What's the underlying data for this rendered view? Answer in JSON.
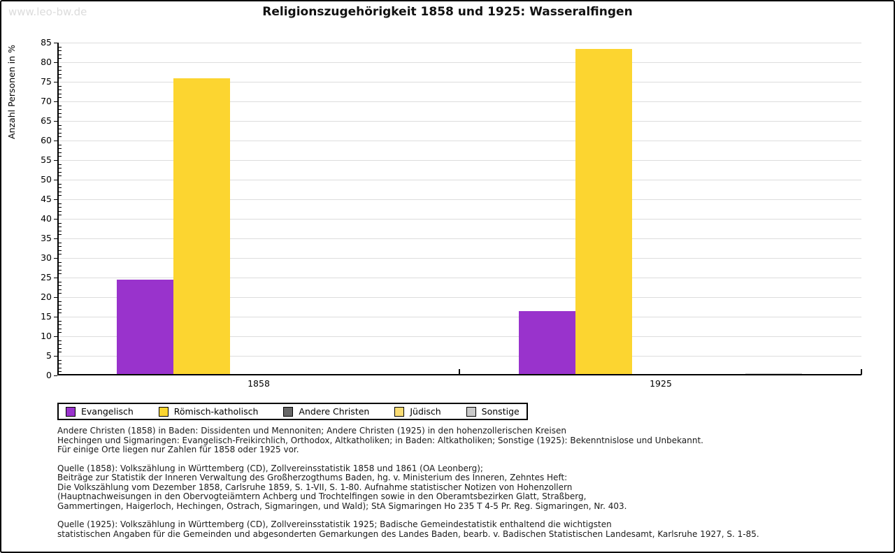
{
  "header": {
    "watermark": "www.leo-bw.de",
    "title": "Religionszugehörigkeit 1858 und 1925: Wasseralfingen"
  },
  "chart_data": {
    "type": "bar",
    "title": "Religionszugehörigkeit 1858 und 1925: Wasseralfingen",
    "xlabel": "",
    "ylabel": "Anzahl Personen in %",
    "ylim": [
      0,
      85
    ],
    "ytick_step": 5,
    "yminor_step": 1,
    "grid": "horizontal",
    "gridline_color": "#dddddd",
    "legend_position": "bottom-left",
    "categories": [
      "1858",
      "1925"
    ],
    "series": [
      {
        "name": "Evangelisch",
        "color": "#9933cc",
        "values": [
          24.4,
          16.5
        ]
      },
      {
        "name": "Römisch-katholisch",
        "color": "#fcd530",
        "values": [
          75.9,
          83.4
        ]
      },
      {
        "name": "Andere Christen",
        "color": "#666666",
        "values": [
          0,
          0
        ]
      },
      {
        "name": "Jüdisch",
        "color": "#fadc73",
        "values": [
          0,
          0
        ]
      },
      {
        "name": "Sonstige",
        "color": "#c9c9c9",
        "values": [
          0,
          0.5
        ]
      }
    ]
  },
  "footer": {
    "p1": "Andere Christen (1858) in Baden: Dissidenten und Mennoniten; Andere Christen (1925) in den hohenzollerischen Kreisen\nHechingen und Sigmaringen: Evangelisch-Freikirchlich, Orthodox, Altkatholiken; in Baden: Altkatholiken; Sonstige (1925): Bekenntnislose und Unbekannt.\nFür einige Orte liegen nur Zahlen für 1858 oder 1925 vor.",
    "p2": "Quelle (1858): Volkszählung in Württemberg (CD), Zollvereinsstatistik 1858 und 1861 (OA Leonberg);\nBeiträge zur Statistik der Inneren Verwaltung des Großherzogthums Baden, hg. v. Ministerium des Inneren, Zehntes Heft:\nDie Volkszählung vom Dezember 1858, Carlsruhe 1859, S. 1-VII, S. 1-80. Aufnahme statistischer Notizen von Hohenzollern\n(Hauptnachweisungen in den Obervogteiämtern Achberg und Trochtelfingen sowie in den Oberamtsbezirken Glatt, Straßberg,\nGammertingen, Haigerloch, Hechingen, Ostrach, Sigmaringen, und Wald); StA Sigmaringen Ho 235 T 4-5 Pr. Reg. Sigmaringen, Nr. 403.",
    "p3": "Quelle (1925): Volkszählung in Württemberg (CD), Zollvereinsstatistik 1925; Badische Gemeindestatistik enthaltend die wichtigsten\nstatistischen Angaben für die Gemeinden und abgesonderten Gemarkungen des Landes Baden, bearb. v. Badischen Statistischen Landesamt, Karlsruhe 1927, S. 1-85."
  }
}
